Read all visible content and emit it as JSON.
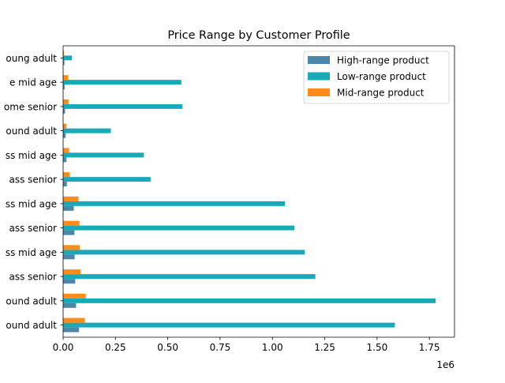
{
  "chart_data": {
    "type": "bar",
    "orientation": "horizontal",
    "title": "Price Range by Customer Profile",
    "xlabel": "",
    "ylabel": "",
    "x_scale_label": "1e6",
    "xlim": [
      0,
      1.87
    ],
    "x_ticks": [
      "0.00",
      "0.25",
      "0.50",
      "0.75",
      "1.00",
      "1.25",
      "1.50",
      "1.75"
    ],
    "x_tick_values": [
      0,
      0.25,
      0.5,
      0.75,
      1.0,
      1.25,
      1.5,
      1.75
    ],
    "categories": [
      "ound adult",
      "ound adult",
      "ass senior",
      "ss mid age",
      "ass senior",
      "ss mid age",
      "ass senior",
      "ss mid age",
      "ound adult",
      "ome senior",
      "e mid age",
      "oung adult"
    ],
    "series": [
      {
        "name": "High-range product",
        "color": "#4c87ab",
        "values": [
          0.076,
          0.062,
          0.058,
          0.055,
          0.054,
          0.051,
          0.018,
          0.016,
          0.012,
          0.009,
          0.007,
          0.006
        ]
      },
      {
        "name": "Low-range product",
        "color": "#19aab7",
        "values": [
          1.585,
          1.78,
          1.205,
          1.155,
          1.105,
          1.06,
          0.418,
          0.386,
          0.228,
          0.57,
          0.565,
          0.042
        ]
      },
      {
        "name": "Mid-range product",
        "color": "#ff8c1a",
        "values": [
          0.104,
          0.108,
          0.084,
          0.08,
          0.078,
          0.074,
          0.032,
          0.028,
          0.016,
          0.026,
          0.025,
          0.004
        ]
      }
    ],
    "legend_position": "top-right",
    "grid": false
  }
}
